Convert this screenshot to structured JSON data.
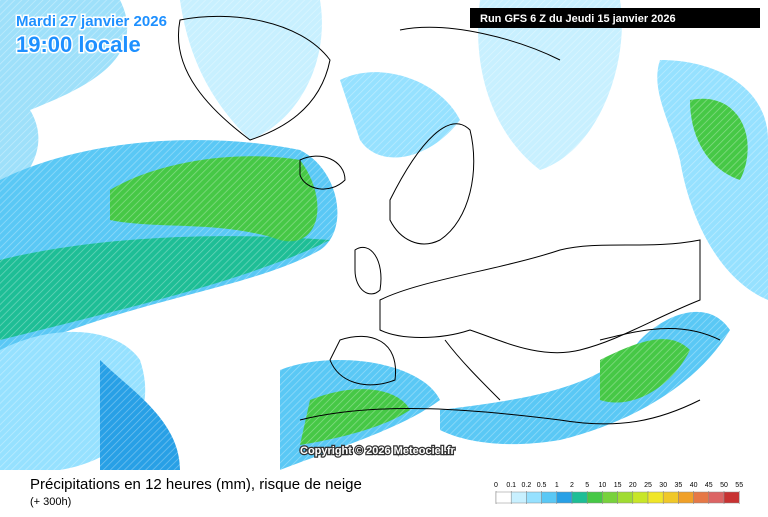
{
  "header": {
    "date": "Mardi 27 janvier 2026",
    "time": "19:00 locale",
    "run": "Run GFS 6 Z du Jeudi 15 janvier 2026"
  },
  "copyright": "Copyright © 2026 Meteociel.fr",
  "footer": {
    "title": "Précipitations en 12 heures (mm), risque de neige",
    "lead": "(+ 300h)"
  },
  "legend": {
    "values": [
      0,
      0.1,
      0.2,
      0.5,
      1,
      2,
      5,
      10,
      15,
      20,
      25,
      30,
      35,
      40,
      45,
      50,
      55
    ],
    "colors": [
      "#ffffff",
      "#c8f0ff",
      "#96e1ff",
      "#5ac8f5",
      "#28a0e6",
      "#1ebe96",
      "#46c846",
      "#78d23c",
      "#a0dc32",
      "#c8e628",
      "#f0e628",
      "#f0c828",
      "#f0a028",
      "#e67846",
      "#dc6464",
      "#c83232"
    ]
  }
}
